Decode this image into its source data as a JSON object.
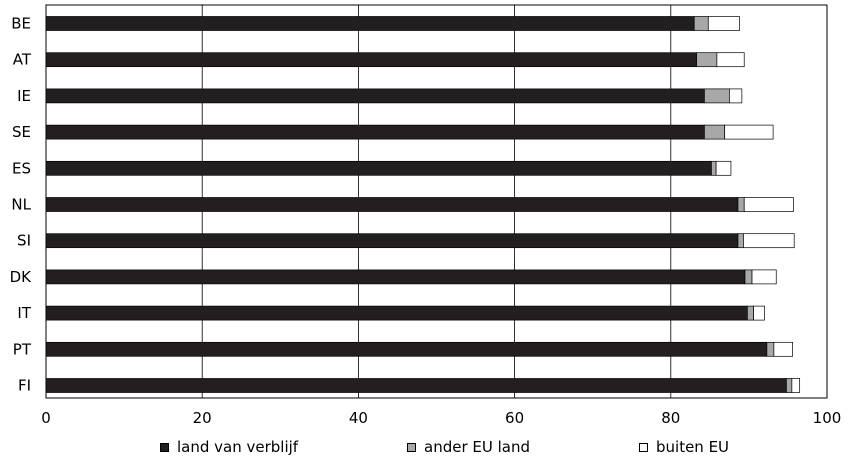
{
  "chart_data": {
    "type": "bar",
    "orientation": "horizontal",
    "stacked": true,
    "categories": [
      "BE",
      "AT",
      "IE",
      "SE",
      "ES",
      "NL",
      "SI",
      "DK",
      "IT",
      "PT",
      "FI"
    ],
    "series": [
      {
        "name": "land van verblijf",
        "color": "#231f20",
        "values": [
          83.0,
          83.3,
          84.3,
          84.3,
          85.2,
          88.6,
          88.6,
          89.5,
          89.8,
          92.3,
          94.8
        ]
      },
      {
        "name": "ander EU land",
        "color": "#a8a8a8",
        "values": [
          1.8,
          2.6,
          3.2,
          2.6,
          0.6,
          0.8,
          0.7,
          0.9,
          0.8,
          0.9,
          0.7
        ]
      },
      {
        "name": "buiten EU",
        "color": "#ffffff",
        "values": [
          4.0,
          3.5,
          1.6,
          6.2,
          1.9,
          6.3,
          6.5,
          3.1,
          1.4,
          2.4,
          1.0
        ]
      }
    ],
    "xlim": [
      0,
      100
    ],
    "xticks": [
      "0",
      "20",
      "40",
      "60",
      "80",
      "100"
    ],
    "grid": true,
    "legend_position": "bottom"
  },
  "legend": {
    "items": [
      {
        "label": "land van verblijf",
        "color": "#231f20"
      },
      {
        "label": "ander EU land",
        "color": "#a8a8a8"
      },
      {
        "label": "buiten EU",
        "color": "#ffffff"
      }
    ]
  }
}
